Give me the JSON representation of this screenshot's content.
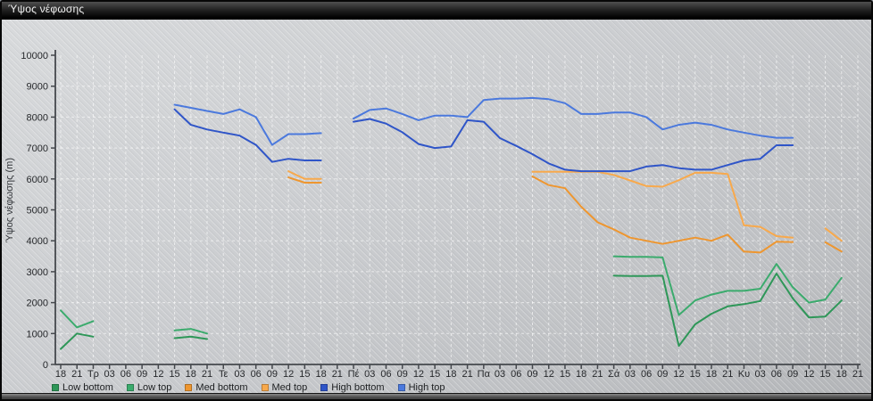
{
  "window": {
    "title": "Ύψος νέφωσης"
  },
  "axes": {
    "y_label": "Ύψος νέφωσης (m)",
    "y_ticks": [
      0,
      1000,
      2000,
      3000,
      4000,
      5000,
      6000,
      7000,
      8000,
      9000,
      10000
    ]
  },
  "colors": {
    "low_bottom": "#2e9758",
    "low_top": "#3bab6d",
    "med_bottom": "#ee962f",
    "med_top": "#f8a94c",
    "high_bottom": "#2f55c8",
    "high_top": "#4b79dd",
    "background": "#c7c9cc",
    "gridline": "#ffffff",
    "axis": "#45484d"
  },
  "chart_data": {
    "type": "line",
    "title": "Ύψος νέφωσης",
    "xlabel": "",
    "ylabel": "Ύψος νέφωσης (m)",
    "ylim": [
      0,
      10000
    ],
    "grid": true,
    "legend_position": "bottom",
    "x_categories": [
      "18",
      "21",
      "Τρ",
      "03",
      "06",
      "09",
      "12",
      "15",
      "18",
      "21",
      "Τε",
      "03",
      "06",
      "09",
      "12",
      "15",
      "18",
      "21",
      "Πέ",
      "03",
      "06",
      "09",
      "12",
      "15",
      "18",
      "21",
      "Πα",
      "03",
      "06",
      "09",
      "12",
      "15",
      "18",
      "21",
      "Σά",
      "03",
      "06",
      "09",
      "12",
      "15",
      "18",
      "21",
      "Κυ",
      "03",
      "06",
      "09",
      "12",
      "15",
      "18",
      "21"
    ],
    "series": [
      {
        "name": "Low bottom",
        "color": "#2e9758",
        "values": [
          500,
          1000,
          900,
          null,
          null,
          null,
          null,
          850,
          900,
          820,
          null,
          null,
          null,
          null,
          null,
          null,
          null,
          null,
          null,
          null,
          null,
          null,
          null,
          null,
          null,
          null,
          null,
          null,
          null,
          null,
          null,
          null,
          null,
          null,
          2870,
          2860,
          2860,
          2870,
          600,
          1300,
          1640,
          1880,
          1950,
          2050,
          2940,
          2140,
          1520,
          1550,
          2070,
          null
        ]
      },
      {
        "name": "Low top",
        "color": "#3bab6d",
        "values": [
          1750,
          1200,
          1400,
          null,
          null,
          null,
          null,
          1100,
          1150,
          1000,
          null,
          null,
          null,
          null,
          null,
          null,
          null,
          null,
          null,
          null,
          null,
          null,
          null,
          null,
          null,
          null,
          null,
          null,
          null,
          null,
          null,
          null,
          null,
          null,
          3500,
          3480,
          3480,
          3460,
          1600,
          2070,
          2260,
          2380,
          2380,
          2450,
          3250,
          2500,
          2000,
          2100,
          2800,
          null
        ]
      },
      {
        "name": "Med bottom",
        "color": "#ee962f",
        "values": [
          null,
          null,
          null,
          null,
          null,
          null,
          null,
          null,
          null,
          null,
          null,
          null,
          null,
          null,
          6050,
          5880,
          5880,
          null,
          null,
          null,
          null,
          null,
          null,
          null,
          null,
          null,
          null,
          null,
          null,
          6080,
          5800,
          5700,
          5100,
          4600,
          4370,
          4100,
          4000,
          3900,
          4000,
          4100,
          4000,
          4200,
          3650,
          3620,
          3970,
          3960,
          null,
          3950,
          3650,
          null
        ]
      },
      {
        "name": "Med top",
        "color": "#f8a94c",
        "values": [
          null,
          null,
          null,
          null,
          null,
          null,
          null,
          null,
          null,
          null,
          null,
          null,
          null,
          null,
          6250,
          6000,
          6000,
          null,
          null,
          null,
          null,
          null,
          null,
          null,
          null,
          null,
          null,
          null,
          null,
          6230,
          6230,
          6230,
          6230,
          6230,
          6130,
          5950,
          5770,
          5750,
          5960,
          6200,
          6200,
          6160,
          4500,
          4450,
          4150,
          4100,
          null,
          4400,
          4000,
          null
        ]
      },
      {
        "name": "High bottom",
        "color": "#2f55c8",
        "values": [
          null,
          null,
          null,
          null,
          null,
          null,
          null,
          8250,
          7750,
          7600,
          7500,
          7400,
          7100,
          6550,
          6650,
          6600,
          6600,
          null,
          7850,
          7940,
          7790,
          7510,
          7130,
          7000,
          7050,
          7900,
          7850,
          7320,
          7070,
          6800,
          6500,
          6300,
          6250,
          6250,
          6250,
          6250,
          6400,
          6450,
          6350,
          6300,
          6300,
          6450,
          6600,
          6650,
          7090,
          7090,
          null,
          null,
          null,
          null
        ]
      },
      {
        "name": "High top",
        "color": "#4b79dd",
        "values": [
          null,
          null,
          null,
          null,
          null,
          null,
          null,
          8400,
          8300,
          8200,
          8100,
          8250,
          8000,
          7100,
          7450,
          7450,
          7480,
          null,
          7950,
          8230,
          8280,
          8100,
          7900,
          8050,
          8050,
          8000,
          8550,
          8600,
          8600,
          8620,
          8580,
          8450,
          8100,
          8100,
          8150,
          8150,
          8000,
          7600,
          7750,
          7820,
          7750,
          7600,
          7500,
          7400,
          7330,
          7330,
          null,
          null,
          null,
          null
        ]
      }
    ]
  }
}
